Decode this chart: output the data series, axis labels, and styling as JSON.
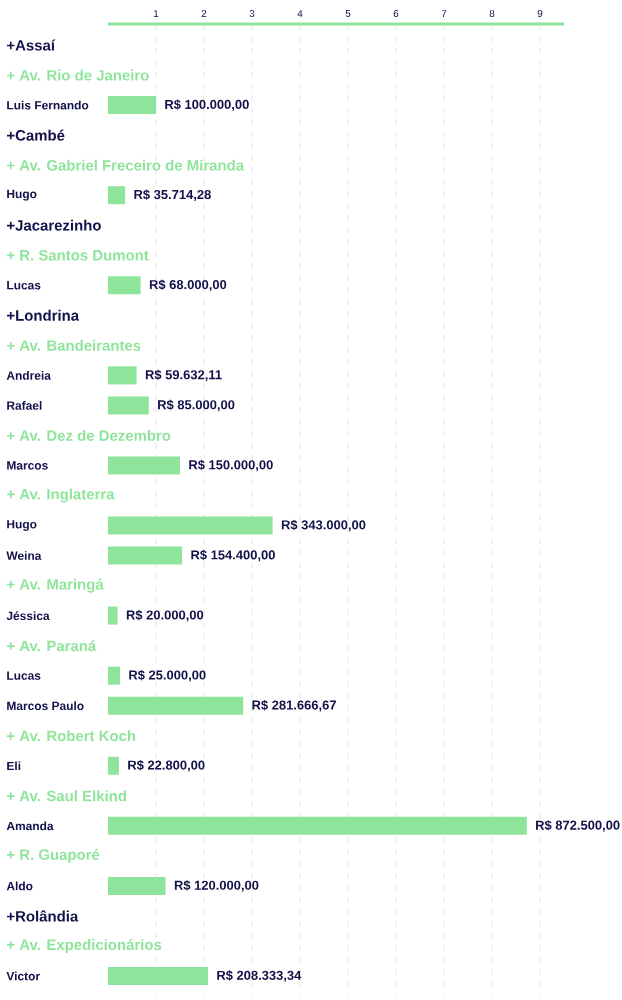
{
  "chart_data": {
    "type": "bar",
    "orientation": "horizontal",
    "categories": [
      "+Assaí",
      "+ Av. Rio de Janeiro",
      "Luis Fernando",
      "+Cambé",
      "+ Av. Gabriel Freceiro de Miranda",
      "Hugo",
      "+Jacarezinho",
      "+ R. Santos Dumont",
      "Lucas",
      "+Londrina",
      "+ Av. Bandeirantes",
      "Andreia",
      "Rafael",
      "+ Av. Dez de Dezembro",
      "Marcos",
      "+ Av. Inglaterra",
      "Hugo",
      "Weina",
      "+ Av. Maringá",
      "Jéssica",
      "+ Av. Paraná",
      "Lucas",
      "Marcos Paulo",
      "+ Av. Robert Koch",
      "Eli",
      "+ Av. Saul Elkind",
      "Amanda",
      "+ R. Guaporé",
      "Aldo",
      "+Rolândia",
      "+ Av. Expedicionários",
      "Victor"
    ],
    "values": [
      null,
      null,
      1,
      null,
      null,
      0.3571428,
      null,
      null,
      0.68,
      null,
      null,
      0.5963211,
      0.85,
      null,
      1.5,
      null,
      3.43,
      1.544,
      null,
      0.2,
      null,
      0.25,
      2.8166667,
      null,
      0.228,
      null,
      8.725,
      null,
      1.2,
      null,
      null,
      2.0833334
    ],
    "value_labels": [
      null,
      null,
      "R$ 100.000,00",
      null,
      null,
      "R$ 35.714,28",
      null,
      null,
      "R$ 68.000,00",
      null,
      null,
      "R$ 59.632,11",
      "R$ 85.000,00",
      null,
      "R$ 150.000,00",
      null,
      "R$ 343.000,00",
      "R$ 154.400,00",
      null,
      "R$ 20.000,00",
      null,
      "R$ 25.000,00",
      "R$ 281.666,67",
      null,
      "R$ 22.800,00",
      null,
      "R$ 872.500,00",
      null,
      "R$ 120.000,00",
      null,
      null,
      "R$ 208.333,34"
    ],
    "colors": [
      "#14124a",
      "#8ee49a",
      "#8ee49a",
      "#14124a",
      "#8ee49a",
      "#8ee49a",
      "#14124a",
      "#8ee49a",
      "#8ee49a",
      "#14124a",
      "#8ee49a",
      "#8ee49a",
      "#8ee49a",
      "#8ee49a",
      "#8ee49a",
      "#8ee49a",
      "#8ee49a",
      "#8ee49a",
      "#8ee49a",
      "#8ee49a",
      "#8ee49a",
      "#8ee49a",
      "#8ee49a",
      "#8ee49a",
      "#8ee49a",
      "#8ee49a",
      "#8ee49a",
      "#8ee49a",
      "#8ee49a",
      "#14124a",
      "#8ee49a",
      "#8ee49a"
    ],
    "xlim": [
      0,
      9.5
    ],
    "xticks": [
      1,
      2,
      3,
      4,
      5,
      6,
      7,
      8,
      9
    ],
    "grid": "x"
  }
}
